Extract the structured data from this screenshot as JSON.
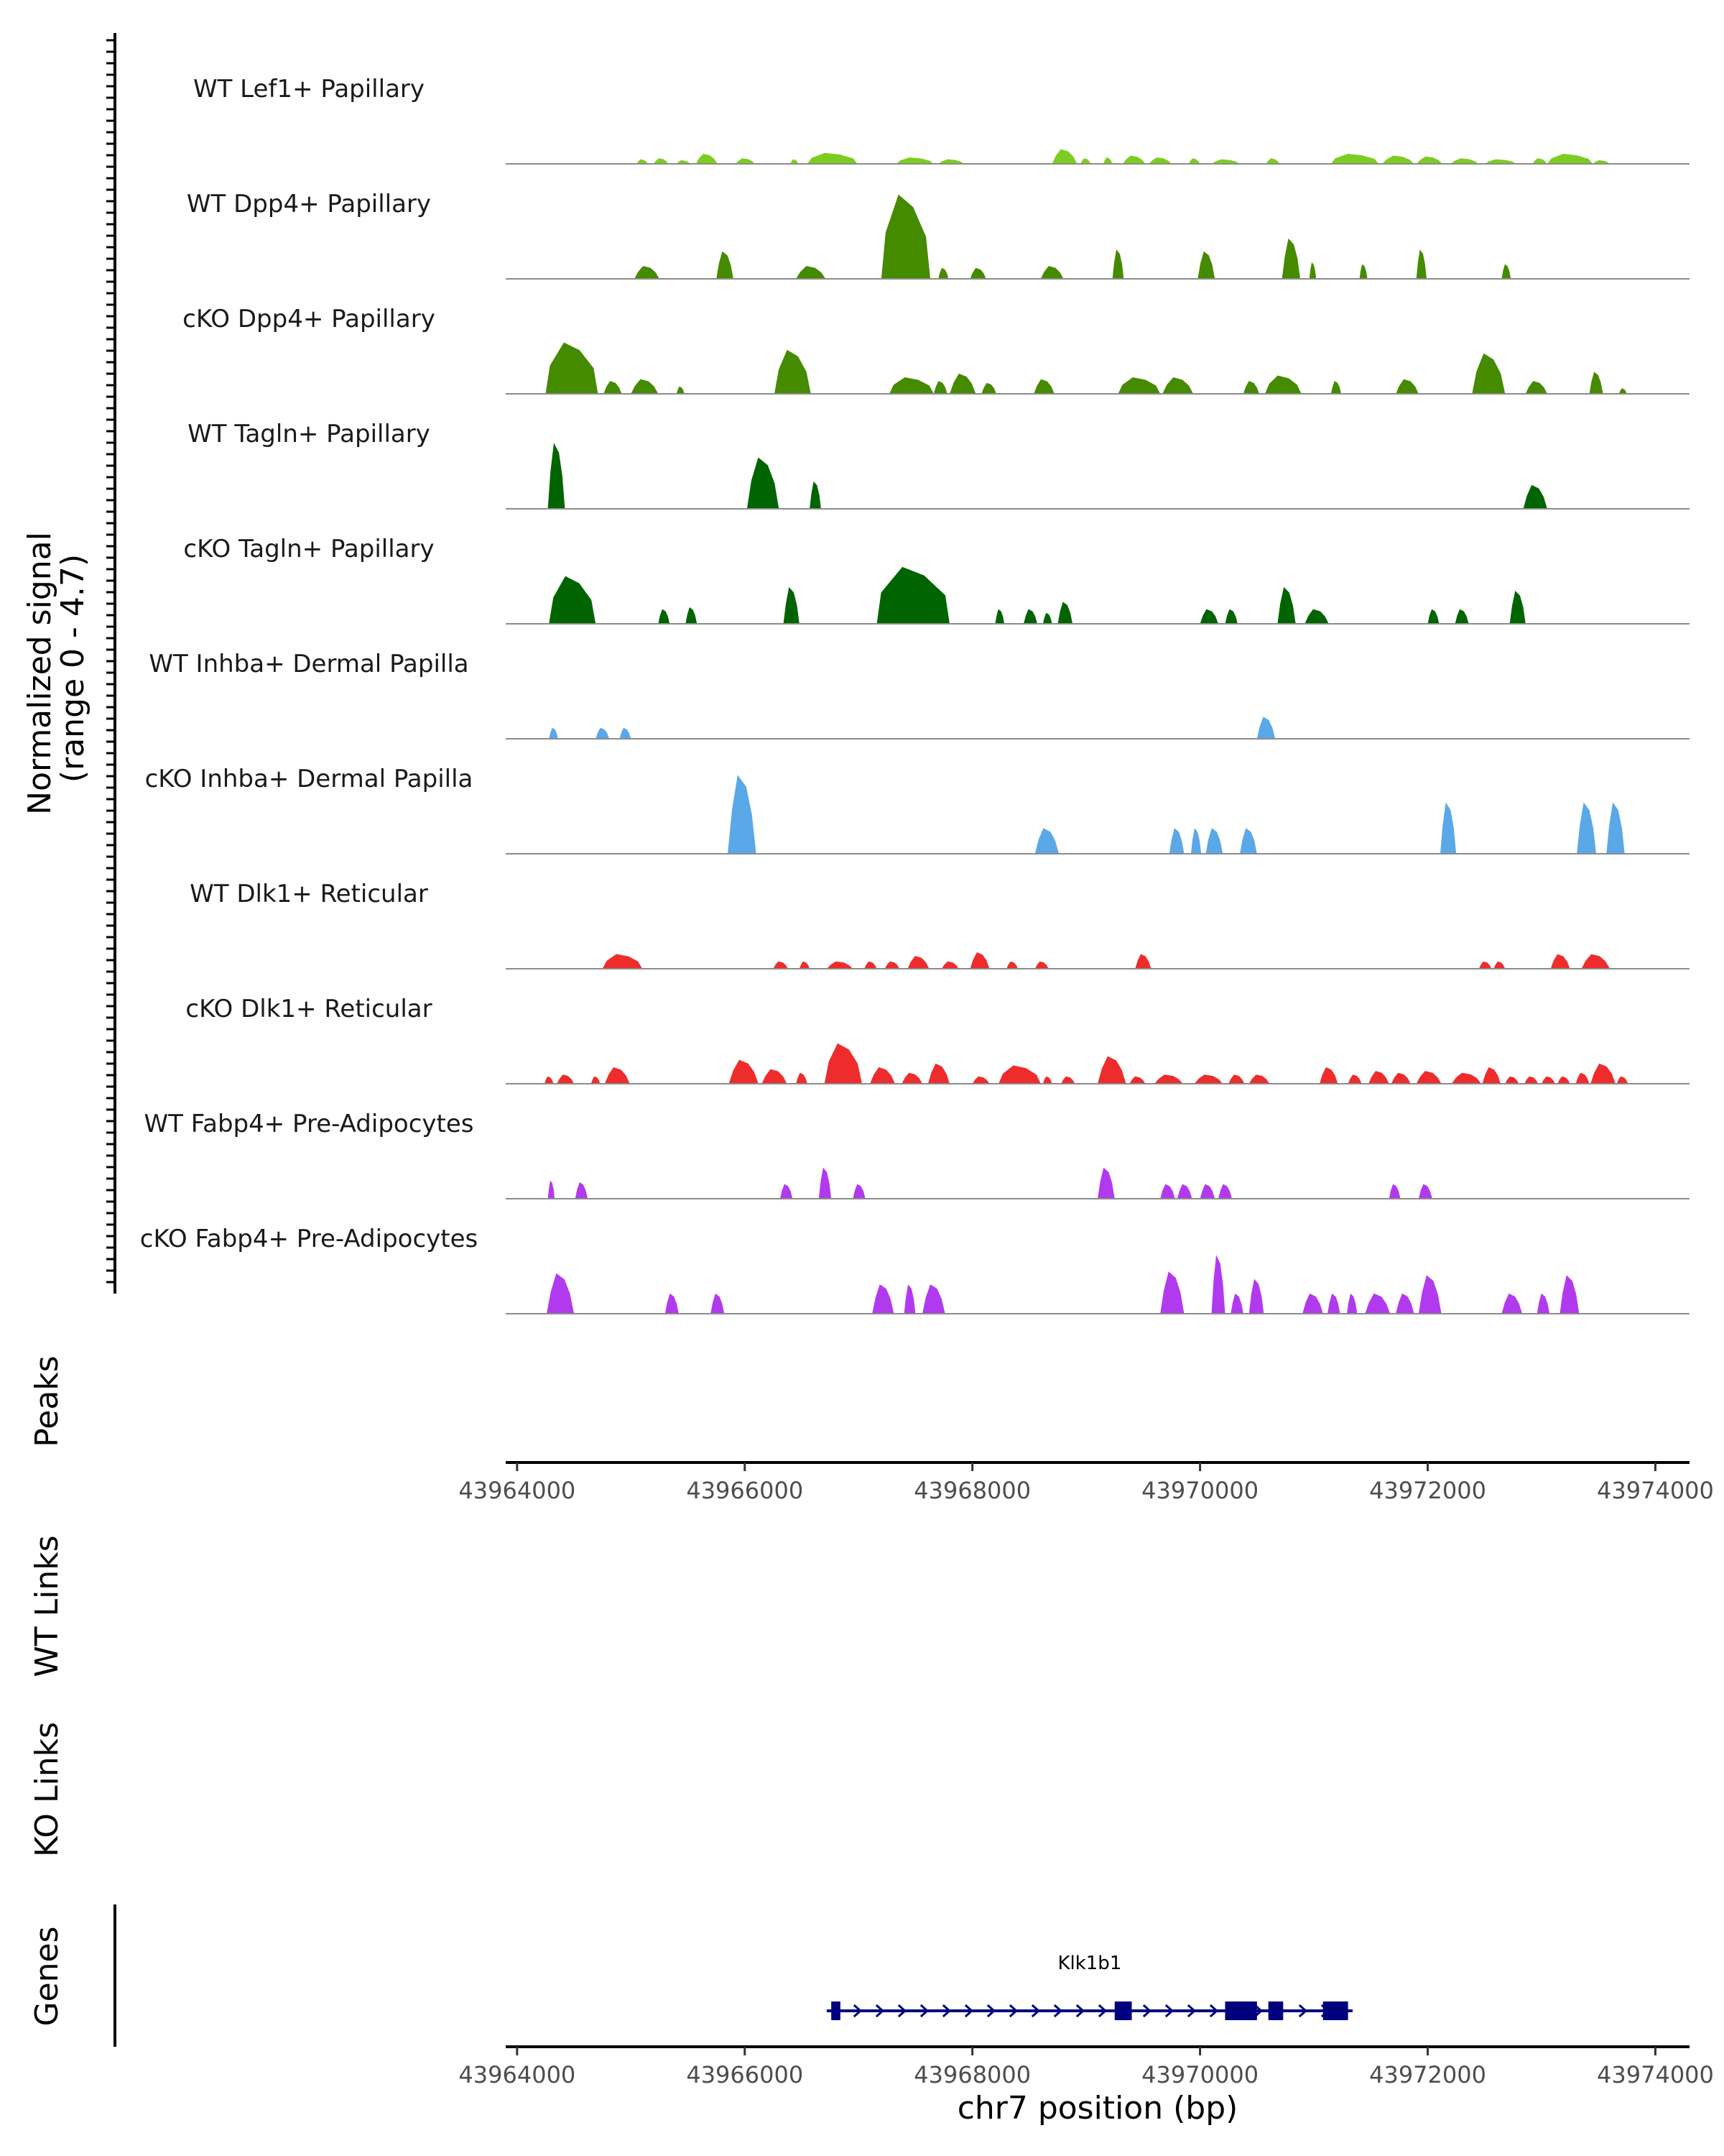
{
  "chart_data": {
    "type": "area",
    "xlim": [
      43963900,
      43974300
    ],
    "x_ticks": [
      43964000,
      43966000,
      43968000,
      43970000,
      43972000,
      43974000
    ],
    "x_tick_labels": [
      "43964000",
      "43966000",
      "43968000",
      "43970000",
      "43972000",
      "43974000"
    ],
    "xlabel": "chr7 position (bp)",
    "coverage_ylabel_line1": "Normalized signal",
    "coverage_ylabel_line2": "(range 0 - 4.7)",
    "ylim": [
      0,
      4.7
    ],
    "tracks": [
      {
        "name": "WT Lef1+ Papillary",
        "color": "#7CCD21",
        "peaks": [
          [
            43965050,
            43965150,
            0.25
          ],
          [
            43965200,
            43965330,
            0.3
          ],
          [
            43965400,
            43965520,
            0.2
          ],
          [
            43965570,
            43965760,
            0.55
          ],
          [
            43965920,
            43966090,
            0.3
          ],
          [
            43966400,
            43966470,
            0.25
          ],
          [
            43966550,
            43966990,
            0.6
          ],
          [
            43967330,
            43967660,
            0.35
          ],
          [
            43967700,
            43967930,
            0.25
          ],
          [
            43968700,
            43968920,
            0.8
          ],
          [
            43968950,
            43969040,
            0.3
          ],
          [
            43969150,
            43969230,
            0.35
          ],
          [
            43969320,
            43969520,
            0.45
          ],
          [
            43969550,
            43969750,
            0.35
          ],
          [
            43969900,
            43970000,
            0.3
          ],
          [
            43970100,
            43970350,
            0.25
          ],
          [
            43970580,
            43970700,
            0.3
          ],
          [
            43971150,
            43971570,
            0.55
          ],
          [
            43971600,
            43971880,
            0.45
          ],
          [
            43971900,
            43972130,
            0.4
          ],
          [
            43972200,
            43972450,
            0.3
          ],
          [
            43972500,
            43972780,
            0.25
          ],
          [
            43972920,
            43973050,
            0.3
          ],
          [
            43973050,
            43973450,
            0.55
          ],
          [
            43973450,
            43973600,
            0.2
          ]
        ]
      },
      {
        "name": "WT Dpp4+ Papillary",
        "color": "#458B00",
        "peaks": [
          [
            43965030,
            43965250,
            0.7
          ],
          [
            43965750,
            43965900,
            1.5
          ],
          [
            43966450,
            43966710,
            0.7
          ],
          [
            43967200,
            43967630,
            4.6
          ],
          [
            43967700,
            43967790,
            0.6
          ],
          [
            43967980,
            43968120,
            0.6
          ],
          [
            43968600,
            43968800,
            0.7
          ],
          [
            43969230,
            43969330,
            1.6
          ],
          [
            43969980,
            43970130,
            1.5
          ],
          [
            43970720,
            43970880,
            2.2
          ],
          [
            43970960,
            43971020,
            0.9
          ],
          [
            43971400,
            43971470,
            0.8
          ],
          [
            43971900,
            43971990,
            1.6
          ],
          [
            43972650,
            43972730,
            0.8
          ]
        ]
      },
      {
        "name": "cKO Dpp4+ Papillary",
        "color": "#458B00",
        "peaks": [
          [
            43964250,
            43964710,
            2.8
          ],
          [
            43964760,
            43964920,
            0.7
          ],
          [
            43965000,
            43965240,
            0.8
          ],
          [
            43965400,
            43965470,
            0.4
          ],
          [
            43966260,
            43966580,
            2.4
          ],
          [
            43967270,
            43967660,
            0.9
          ],
          [
            43967660,
            43967780,
            0.7
          ],
          [
            43967800,
            43968030,
            1.1
          ],
          [
            43968080,
            43968210,
            0.6
          ],
          [
            43968540,
            43968720,
            0.8
          ],
          [
            43969280,
            43969650,
            0.9
          ],
          [
            43969670,
            43969940,
            0.9
          ],
          [
            43970380,
            43970520,
            0.7
          ],
          [
            43970570,
            43970890,
            1.0
          ],
          [
            43971150,
            43971240,
            0.7
          ],
          [
            43971720,
            43971920,
            0.8
          ],
          [
            43972390,
            43972680,
            2.2
          ],
          [
            43972860,
            43973050,
            0.7
          ],
          [
            43973420,
            43973540,
            1.2
          ],
          [
            43973680,
            43973750,
            0.3
          ]
        ]
      },
      {
        "name": "WT Tagln+ Papillary",
        "color": "#006400",
        "peaks": [
          [
            43964270,
            43964420,
            3.6
          ],
          [
            43966020,
            43966300,
            2.8
          ],
          [
            43966570,
            43966670,
            1.5
          ],
          [
            43972840,
            43973050,
            1.3
          ]
        ]
      },
      {
        "name": "cKO Tagln+ Papillary",
        "color": "#006400",
        "peaks": [
          [
            43964280,
            43964690,
            2.6
          ],
          [
            43965240,
            43965340,
            0.8
          ],
          [
            43965480,
            43965580,
            0.9
          ],
          [
            43966340,
            43966480,
            2.0
          ],
          [
            43967160,
            43967800,
            3.1
          ],
          [
            43968200,
            43968280,
            0.8
          ],
          [
            43968450,
            43968570,
            0.8
          ],
          [
            43968620,
            43968700,
            0.6
          ],
          [
            43968750,
            43968880,
            1.2
          ],
          [
            43970000,
            43970160,
            0.8
          ],
          [
            43970220,
            43970330,
            0.8
          ],
          [
            43970680,
            43970840,
            2.0
          ],
          [
            43970920,
            43971130,
            0.8
          ],
          [
            43972000,
            43972100,
            0.8
          ],
          [
            43972240,
            43972360,
            0.8
          ],
          [
            43972720,
            43972860,
            1.8
          ]
        ]
      },
      {
        "name": "WT Inhba+ Dermal Papilla",
        "color": "#5AA8E8",
        "peaks": [
          [
            43964280,
            43964360,
            0.6
          ],
          [
            43964690,
            43964810,
            0.6
          ],
          [
            43964900,
            43965000,
            0.6
          ],
          [
            43970500,
            43970660,
            1.2
          ]
        ]
      },
      {
        "name": "cKO Inhba+ Dermal Papilla",
        "color": "#5AA8E8",
        "peaks": [
          [
            43965850,
            43966100,
            4.3
          ],
          [
            43968550,
            43968760,
            1.4
          ],
          [
            43969730,
            43969860,
            1.4
          ],
          [
            43969920,
            43970010,
            1.4
          ],
          [
            43970050,
            43970200,
            1.4
          ],
          [
            43970350,
            43970500,
            1.4
          ],
          [
            43972110,
            43972250,
            2.8
          ],
          [
            43973310,
            43973480,
            2.8
          ],
          [
            43973570,
            43973730,
            2.8
          ]
        ]
      },
      {
        "name": "WT Dlk1+ Reticular",
        "color": "#EE2C2C",
        "peaks": [
          [
            43964750,
            43965100,
            0.8
          ],
          [
            43966250,
            43966380,
            0.4
          ],
          [
            43966480,
            43966570,
            0.4
          ],
          [
            43966720,
            43966950,
            0.4
          ],
          [
            43967050,
            43967160,
            0.4
          ],
          [
            43967230,
            43967360,
            0.4
          ],
          [
            43967430,
            43967620,
            0.7
          ],
          [
            43967730,
            43967880,
            0.4
          ],
          [
            43967980,
            43968150,
            0.9
          ],
          [
            43968300,
            43968400,
            0.4
          ],
          [
            43968550,
            43968670,
            0.4
          ],
          [
            43969430,
            43969570,
            0.8
          ],
          [
            43972450,
            43972560,
            0.4
          ],
          [
            43972580,
            43972680,
            0.4
          ],
          [
            43973080,
            43973250,
            0.8
          ],
          [
            43973350,
            43973600,
            0.8
          ]
        ]
      },
      {
        "name": "cKO Dlk1+ Reticular",
        "color": "#EE2C2C",
        "peaks": [
          [
            43964240,
            43964320,
            0.4
          ],
          [
            43964350,
            43964500,
            0.5
          ],
          [
            43964650,
            43964730,
            0.4
          ],
          [
            43964770,
            43964990,
            0.9
          ],
          [
            43965860,
            43966120,
            1.3
          ],
          [
            43966150,
            43966370,
            0.8
          ],
          [
            43966450,
            43966550,
            0.6
          ],
          [
            43966700,
            43967030,
            2.2
          ],
          [
            43967100,
            43967320,
            0.9
          ],
          [
            43967380,
            43967560,
            0.6
          ],
          [
            43967610,
            43967800,
            1.1
          ],
          [
            43968000,
            43968150,
            0.4
          ],
          [
            43968230,
            43968600,
            1.0
          ],
          [
            43968620,
            43968700,
            0.4
          ],
          [
            43968780,
            43968900,
            0.4
          ],
          [
            43969100,
            43969350,
            1.5
          ],
          [
            43969380,
            43969520,
            0.4
          ],
          [
            43969600,
            43969850,
            0.5
          ],
          [
            43969950,
            43970200,
            0.5
          ],
          [
            43970250,
            43970390,
            0.5
          ],
          [
            43970430,
            43970610,
            0.5
          ],
          [
            43971050,
            43971210,
            0.9
          ],
          [
            43971300,
            43971420,
            0.5
          ],
          [
            43971480,
            43971660,
            0.7
          ],
          [
            43971680,
            43971850,
            0.6
          ],
          [
            43971900,
            43972120,
            0.7
          ],
          [
            43972210,
            43972470,
            0.6
          ],
          [
            43972480,
            43972640,
            0.9
          ],
          [
            43972680,
            43972800,
            0.4
          ],
          [
            43972850,
            43972970,
            0.4
          ],
          [
            43973000,
            43973120,
            0.4
          ],
          [
            43973140,
            43973250,
            0.4
          ],
          [
            43973300,
            43973420,
            0.6
          ],
          [
            43973430,
            43973650,
            1.1
          ],
          [
            43973660,
            43973760,
            0.4
          ]
        ]
      },
      {
        "name": "WT Fabp4+ Pre-Adipocytes",
        "color": "#B23AEE",
        "peaks": [
          [
            43964270,
            43964330,
            1.0
          ],
          [
            43964510,
            43964620,
            0.9
          ],
          [
            43966310,
            43966420,
            0.8
          ],
          [
            43966650,
            43966760,
            1.7
          ],
          [
            43966950,
            43967060,
            0.8
          ],
          [
            43969100,
            43969250,
            1.7
          ],
          [
            43969650,
            43969780,
            0.8
          ],
          [
            43969800,
            43969930,
            0.8
          ],
          [
            43970000,
            43970130,
            0.8
          ],
          [
            43970160,
            43970280,
            0.8
          ],
          [
            43971660,
            43971760,
            0.8
          ],
          [
            43971920,
            43972040,
            0.8
          ]
        ]
      },
      {
        "name": "cKO Fabp4+ Pre-Adipocytes",
        "color": "#B23AEE",
        "peaks": [
          [
            43964260,
            43964500,
            2.2
          ],
          [
            43965300,
            43965420,
            1.1
          ],
          [
            43965700,
            43965820,
            1.1
          ],
          [
            43967120,
            43967310,
            1.6
          ],
          [
            43967400,
            43967500,
            1.6
          ],
          [
            43967560,
            43967760,
            1.6
          ],
          [
            43969650,
            43969860,
            2.3
          ],
          [
            43970100,
            43970220,
            3.2
          ],
          [
            43970270,
            43970380,
            1.1
          ],
          [
            43970430,
            43970560,
            1.9
          ],
          [
            43970900,
            43971080,
            1.1
          ],
          [
            43971120,
            43971230,
            1.1
          ],
          [
            43971290,
            43971380,
            1.1
          ],
          [
            43971450,
            43971670,
            1.1
          ],
          [
            43971720,
            43971880,
            1.1
          ],
          [
            43971920,
            43972120,
            2.1
          ],
          [
            43972650,
            43972830,
            1.1
          ],
          [
            43972960,
            43973070,
            1.1
          ],
          [
            43973160,
            43973330,
            2.1
          ]
        ]
      }
    ],
    "panels": {
      "peaks": "Peaks",
      "wt_links": "WT Links",
      "ko_links": "KO Links",
      "genes": "Genes"
    },
    "gene": {
      "name": "Klk1b1",
      "start": 43966720,
      "end": 43971340,
      "strand": "+",
      "color": "#00007F",
      "exons": [
        [
          43966760,
          43966840
        ],
        [
          43969250,
          43969400
        ],
        [
          43970220,
          43970500
        ],
        [
          43970600,
          43970730
        ],
        [
          43971080,
          43971300
        ]
      ]
    }
  }
}
